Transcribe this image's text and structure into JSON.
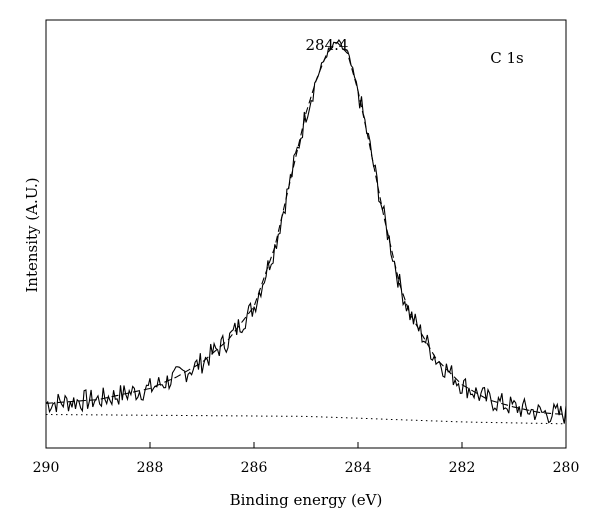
{
  "chart_data": {
    "type": "line",
    "xlabel": "Binding energy (eV)",
    "ylabel": "Intensity (A.U.)",
    "xlim": [
      290,
      280
    ],
    "x_reversed": true,
    "ylim": [
      0,
      1.15
    ],
    "y_ticks_shown": false,
    "grid": false,
    "legend": "none",
    "x_ticks": [
      290,
      288,
      286,
      284,
      282,
      280
    ],
    "x_tick_labels": [
      "290",
      "288",
      "286",
      "284",
      "282",
      "280"
    ],
    "annotations": [
      {
        "text": "284.4",
        "x": 284.4,
        "y": 1.08
      },
      {
        "text": "C 1s",
        "x": 281.0,
        "y": 1.05
      }
    ],
    "series": [
      {
        "style": "solid-noisy",
        "x": [
          290.0,
          289.0,
          288.0,
          287.5,
          287.0,
          286.5,
          286.0,
          285.6,
          285.2,
          285.0,
          284.8,
          284.6,
          284.4,
          284.2,
          284.0,
          283.8,
          283.5,
          283.2,
          283.0,
          282.5,
          282.0,
          281.5,
          281.0,
          280.5,
          280.0
        ],
        "values": [
          0.12,
          0.13,
          0.16,
          0.19,
          0.23,
          0.29,
          0.38,
          0.54,
          0.78,
          0.9,
          0.99,
          1.06,
          1.09,
          1.06,
          0.96,
          0.83,
          0.62,
          0.44,
          0.36,
          0.24,
          0.17,
          0.13,
          0.11,
          0.095,
          0.09
        ],
        "noise": 0.03
      },
      {
        "style": "dashed",
        "x": [
          290.0,
          289.0,
          288.0,
          287.5,
          287.0,
          286.5,
          286.0,
          285.6,
          285.2,
          285.0,
          284.8,
          284.6,
          284.4,
          284.2,
          284.0,
          283.8,
          283.5,
          283.2,
          283.0,
          282.5,
          282.0,
          281.5,
          281.0,
          280.5,
          280.0
        ],
        "values": [
          0.12,
          0.13,
          0.16,
          0.19,
          0.23,
          0.29,
          0.38,
          0.54,
          0.78,
          0.9,
          0.99,
          1.06,
          1.09,
          1.06,
          0.96,
          0.83,
          0.62,
          0.44,
          0.36,
          0.24,
          0.17,
          0.13,
          0.11,
          0.095,
          0.09
        ]
      },
      {
        "style": "dotted",
        "x": [
          290.0,
          285.0,
          282.0,
          280.0
        ],
        "values": [
          0.09,
          0.085,
          0.07,
          0.065
        ]
      }
    ]
  }
}
